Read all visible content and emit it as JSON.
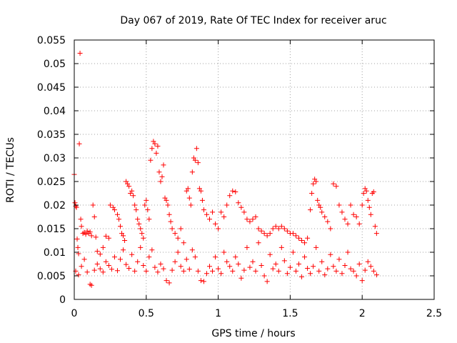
{
  "chart_data": {
    "type": "scatter",
    "title": "Day 067 of 2019, Rate Of TEC Index for receiver aruc",
    "xlabel": "GPS time / hours",
    "ylabel": "ROTI / TECUs",
    "xlim": [
      0,
      2.5
    ],
    "ylim": [
      0,
      0.055
    ],
    "xticks": [
      0,
      0.5,
      1,
      1.5,
      2,
      2.5
    ],
    "xtick_labels": [
      "0",
      "0.5",
      "1",
      "1.5",
      "2",
      "2.5"
    ],
    "yticks": [
      0,
      0.005,
      0.01,
      0.015,
      0.02,
      0.025,
      0.03,
      0.035,
      0.04,
      0.045,
      0.05,
      0.055
    ],
    "ytick_labels": [
      "0",
      "0.005",
      "0.01",
      "0.015",
      "0.02",
      "0.025",
      "0.03",
      "0.035",
      "0.04",
      "0.045",
      "0.05",
      "0.055"
    ],
    "grid": true,
    "marker": "+",
    "series": [
      {
        "name": "ROTI",
        "color": "#ff0000",
        "points": [
          [
            0.0,
            0.0265
          ],
          [
            0.005,
            0.0205
          ],
          [
            0.01,
            0.0198
          ],
          [
            0.015,
            0.0195
          ],
          [
            0.02,
            0.0128
          ],
          [
            0.025,
            0.011
          ],
          [
            0.03,
            0.0097
          ],
          [
            0.035,
            0.033
          ],
          [
            0.04,
            0.0522
          ],
          [
            0.045,
            0.017
          ],
          [
            0.05,
            0.0155
          ],
          [
            0.06,
            0.014
          ],
          [
            0.07,
            0.0142
          ],
          [
            0.08,
            0.0138
          ],
          [
            0.09,
            0.0145
          ],
          [
            0.1,
            0.014
          ],
          [
            0.11,
            0.0143
          ],
          [
            0.12,
            0.0135
          ],
          [
            0.13,
            0.02
          ],
          [
            0.14,
            0.0175
          ],
          [
            0.15,
            0.0132
          ],
          [
            0.16,
            0.0102
          ],
          [
            0.18,
            0.0096
          ],
          [
            0.2,
            0.011
          ],
          [
            0.22,
            0.0134
          ],
          [
            0.24,
            0.013
          ],
          [
            0.25,
            0.02
          ],
          [
            0.27,
            0.0195
          ],
          [
            0.28,
            0.019
          ],
          [
            0.3,
            0.018
          ],
          [
            0.31,
            0.017
          ],
          [
            0.32,
            0.0155
          ],
          [
            0.33,
            0.014
          ],
          [
            0.34,
            0.0135
          ],
          [
            0.35,
            0.0125
          ],
          [
            0.36,
            0.025
          ],
          [
            0.37,
            0.0245
          ],
          [
            0.38,
            0.024
          ],
          [
            0.39,
            0.0225
          ],
          [
            0.4,
            0.023
          ],
          [
            0.41,
            0.022
          ],
          [
            0.42,
            0.02
          ],
          [
            0.43,
            0.019
          ],
          [
            0.44,
            0.017
          ],
          [
            0.45,
            0.016
          ],
          [
            0.46,
            0.015
          ],
          [
            0.47,
            0.014
          ],
          [
            0.48,
            0.013
          ],
          [
            0.49,
            0.02
          ],
          [
            0.5,
            0.021
          ],
          [
            0.51,
            0.019
          ],
          [
            0.52,
            0.017
          ],
          [
            0.53,
            0.0295
          ],
          [
            0.54,
            0.032
          ],
          [
            0.55,
            0.0335
          ],
          [
            0.56,
            0.033
          ],
          [
            0.57,
            0.031
          ],
          [
            0.58,
            0.0325
          ],
          [
            0.59,
            0.027
          ],
          [
            0.6,
            0.025
          ],
          [
            0.61,
            0.026
          ],
          [
            0.62,
            0.0285
          ],
          [
            0.63,
            0.0215
          ],
          [
            0.64,
            0.021
          ],
          [
            0.65,
            0.02
          ],
          [
            0.66,
            0.018
          ],
          [
            0.67,
            0.0165
          ],
          [
            0.68,
            0.015
          ],
          [
            0.7,
            0.014
          ],
          [
            0.72,
            0.013
          ],
          [
            0.74,
            0.015
          ],
          [
            0.76,
            0.012
          ],
          [
            0.78,
            0.023
          ],
          [
            0.79,
            0.0235
          ],
          [
            0.8,
            0.0215
          ],
          [
            0.81,
            0.02
          ],
          [
            0.82,
            0.027
          ],
          [
            0.83,
            0.03
          ],
          [
            0.84,
            0.0295
          ],
          [
            0.85,
            0.032
          ],
          [
            0.86,
            0.029
          ],
          [
            0.87,
            0.0235
          ],
          [
            0.88,
            0.023
          ],
          [
            0.89,
            0.021
          ],
          [
            0.9,
            0.019
          ],
          [
            0.92,
            0.018
          ],
          [
            0.94,
            0.017
          ],
          [
            0.96,
            0.0185
          ],
          [
            0.98,
            0.016
          ],
          [
            1.0,
            0.015
          ],
          [
            1.02,
            0.0185
          ],
          [
            1.04,
            0.0175
          ],
          [
            1.06,
            0.02
          ],
          [
            1.08,
            0.022
          ],
          [
            1.1,
            0.023
          ],
          [
            1.12,
            0.0228
          ],
          [
            1.14,
            0.0205
          ],
          [
            1.16,
            0.0195
          ],
          [
            1.18,
            0.0185
          ],
          [
            1.2,
            0.017
          ],
          [
            1.22,
            0.0165
          ],
          [
            1.24,
            0.017
          ],
          [
            1.26,
            0.0175
          ],
          [
            1.28,
            0.015
          ],
          [
            1.3,
            0.0145
          ],
          [
            1.32,
            0.014
          ],
          [
            1.34,
            0.0135
          ],
          [
            1.36,
            0.014
          ],
          [
            1.38,
            0.015
          ],
          [
            1.4,
            0.0155
          ],
          [
            1.42,
            0.015
          ],
          [
            1.44,
            0.0155
          ],
          [
            1.46,
            0.015
          ],
          [
            1.48,
            0.0145
          ],
          [
            1.5,
            0.014
          ],
          [
            1.52,
            0.014
          ],
          [
            1.54,
            0.0135
          ],
          [
            1.56,
            0.013
          ],
          [
            1.58,
            0.0125
          ],
          [
            1.6,
            0.012
          ],
          [
            1.62,
            0.013
          ],
          [
            1.64,
            0.019
          ],
          [
            1.65,
            0.0225
          ],
          [
            1.66,
            0.0245
          ],
          [
            1.67,
            0.0255
          ],
          [
            1.68,
            0.025
          ],
          [
            1.69,
            0.021
          ],
          [
            1.7,
            0.02
          ],
          [
            1.71,
            0.0195
          ],
          [
            1.72,
            0.0185
          ],
          [
            1.74,
            0.0175
          ],
          [
            1.76,
            0.0165
          ],
          [
            1.78,
            0.015
          ],
          [
            1.8,
            0.0245
          ],
          [
            1.82,
            0.024
          ],
          [
            1.84,
            0.02
          ],
          [
            1.86,
            0.0185
          ],
          [
            1.88,
            0.017
          ],
          [
            1.9,
            0.016
          ],
          [
            1.92,
            0.02
          ],
          [
            1.94,
            0.018
          ],
          [
            1.96,
            0.0175
          ],
          [
            1.98,
            0.016
          ],
          [
            2.0,
            0.02
          ],
          [
            2.01,
            0.0225
          ],
          [
            2.02,
            0.0235
          ],
          [
            2.03,
            0.023
          ],
          [
            2.04,
            0.021
          ],
          [
            2.05,
            0.0195
          ],
          [
            2.06,
            0.018
          ],
          [
            2.07,
            0.0225
          ],
          [
            2.08,
            0.0228
          ],
          [
            2.09,
            0.0155
          ],
          [
            2.1,
            0.014
          ],
          [
            0.01,
            0.006
          ],
          [
            0.03,
            0.0052
          ],
          [
            0.05,
            0.007
          ],
          [
            0.07,
            0.0085
          ],
          [
            0.09,
            0.0058
          ],
          [
            0.11,
            0.0032
          ],
          [
            0.12,
            0.003
          ],
          [
            0.14,
            0.0062
          ],
          [
            0.16,
            0.0075
          ],
          [
            0.18,
            0.0065
          ],
          [
            0.2,
            0.0058
          ],
          [
            0.22,
            0.008
          ],
          [
            0.24,
            0.0072
          ],
          [
            0.26,
            0.0064
          ],
          [
            0.28,
            0.009
          ],
          [
            0.3,
            0.0061
          ],
          [
            0.32,
            0.0085
          ],
          [
            0.34,
            0.0105
          ],
          [
            0.36,
            0.0074
          ],
          [
            0.38,
            0.0066
          ],
          [
            0.4,
            0.0095
          ],
          [
            0.42,
            0.006
          ],
          [
            0.44,
            0.008
          ],
          [
            0.46,
            0.011
          ],
          [
            0.48,
            0.0072
          ],
          [
            0.5,
            0.006
          ],
          [
            0.52,
            0.009
          ],
          [
            0.54,
            0.0105
          ],
          [
            0.56,
            0.0068
          ],
          [
            0.58,
            0.0058
          ],
          [
            0.6,
            0.0075
          ],
          [
            0.62,
            0.0065
          ],
          [
            0.64,
            0.004
          ],
          [
            0.66,
            0.0035
          ],
          [
            0.68,
            0.0062
          ],
          [
            0.7,
            0.008
          ],
          [
            0.72,
            0.01
          ],
          [
            0.74,
            0.007
          ],
          [
            0.76,
            0.006
          ],
          [
            0.78,
            0.0085
          ],
          [
            0.8,
            0.0064
          ],
          [
            0.82,
            0.0105
          ],
          [
            0.84,
            0.009
          ],
          [
            0.86,
            0.006
          ],
          [
            0.88,
            0.004
          ],
          [
            0.9,
            0.0038
          ],
          [
            0.92,
            0.0055
          ],
          [
            0.94,
            0.007
          ],
          [
            0.96,
            0.006
          ],
          [
            0.98,
            0.009
          ],
          [
            1.0,
            0.0065
          ],
          [
            1.02,
            0.0055
          ],
          [
            1.04,
            0.01
          ],
          [
            1.06,
            0.008
          ],
          [
            1.08,
            0.007
          ],
          [
            1.1,
            0.006
          ],
          [
            1.12,
            0.009
          ],
          [
            1.14,
            0.0075
          ],
          [
            1.16,
            0.0045
          ],
          [
            1.18,
            0.0062
          ],
          [
            1.2,
            0.011
          ],
          [
            1.22,
            0.0068
          ],
          [
            1.24,
            0.008
          ],
          [
            1.26,
            0.006
          ],
          [
            1.28,
            0.012
          ],
          [
            1.3,
            0.0072
          ],
          [
            1.32,
            0.005
          ],
          [
            1.34,
            0.0038
          ],
          [
            1.36,
            0.0095
          ],
          [
            1.38,
            0.0065
          ],
          [
            1.4,
            0.0075
          ],
          [
            1.42,
            0.006
          ],
          [
            1.44,
            0.011
          ],
          [
            1.46,
            0.0082
          ],
          [
            1.48,
            0.0055
          ],
          [
            1.5,
            0.0068
          ],
          [
            1.52,
            0.01
          ],
          [
            1.54,
            0.006
          ],
          [
            1.56,
            0.0075
          ],
          [
            1.58,
            0.0048
          ],
          [
            1.6,
            0.009
          ],
          [
            1.62,
            0.0066
          ],
          [
            1.64,
            0.0055
          ],
          [
            1.66,
            0.007
          ],
          [
            1.68,
            0.011
          ],
          [
            1.7,
            0.006
          ],
          [
            1.72,
            0.008
          ],
          [
            1.74,
            0.0052
          ],
          [
            1.76,
            0.0065
          ],
          [
            1.78,
            0.0095
          ],
          [
            1.8,
            0.007
          ],
          [
            1.82,
            0.006
          ],
          [
            1.84,
            0.0085
          ],
          [
            1.86,
            0.0055
          ],
          [
            1.88,
            0.0072
          ],
          [
            1.9,
            0.01
          ],
          [
            1.92,
            0.0065
          ],
          [
            1.94,
            0.006
          ],
          [
            1.96,
            0.005
          ],
          [
            1.98,
            0.0075
          ],
          [
            2.0,
            0.004
          ],
          [
            2.02,
            0.0062
          ],
          [
            2.04,
            0.008
          ],
          [
            2.06,
            0.007
          ],
          [
            2.08,
            0.006
          ],
          [
            2.1,
            0.0052
          ]
        ]
      }
    ]
  }
}
